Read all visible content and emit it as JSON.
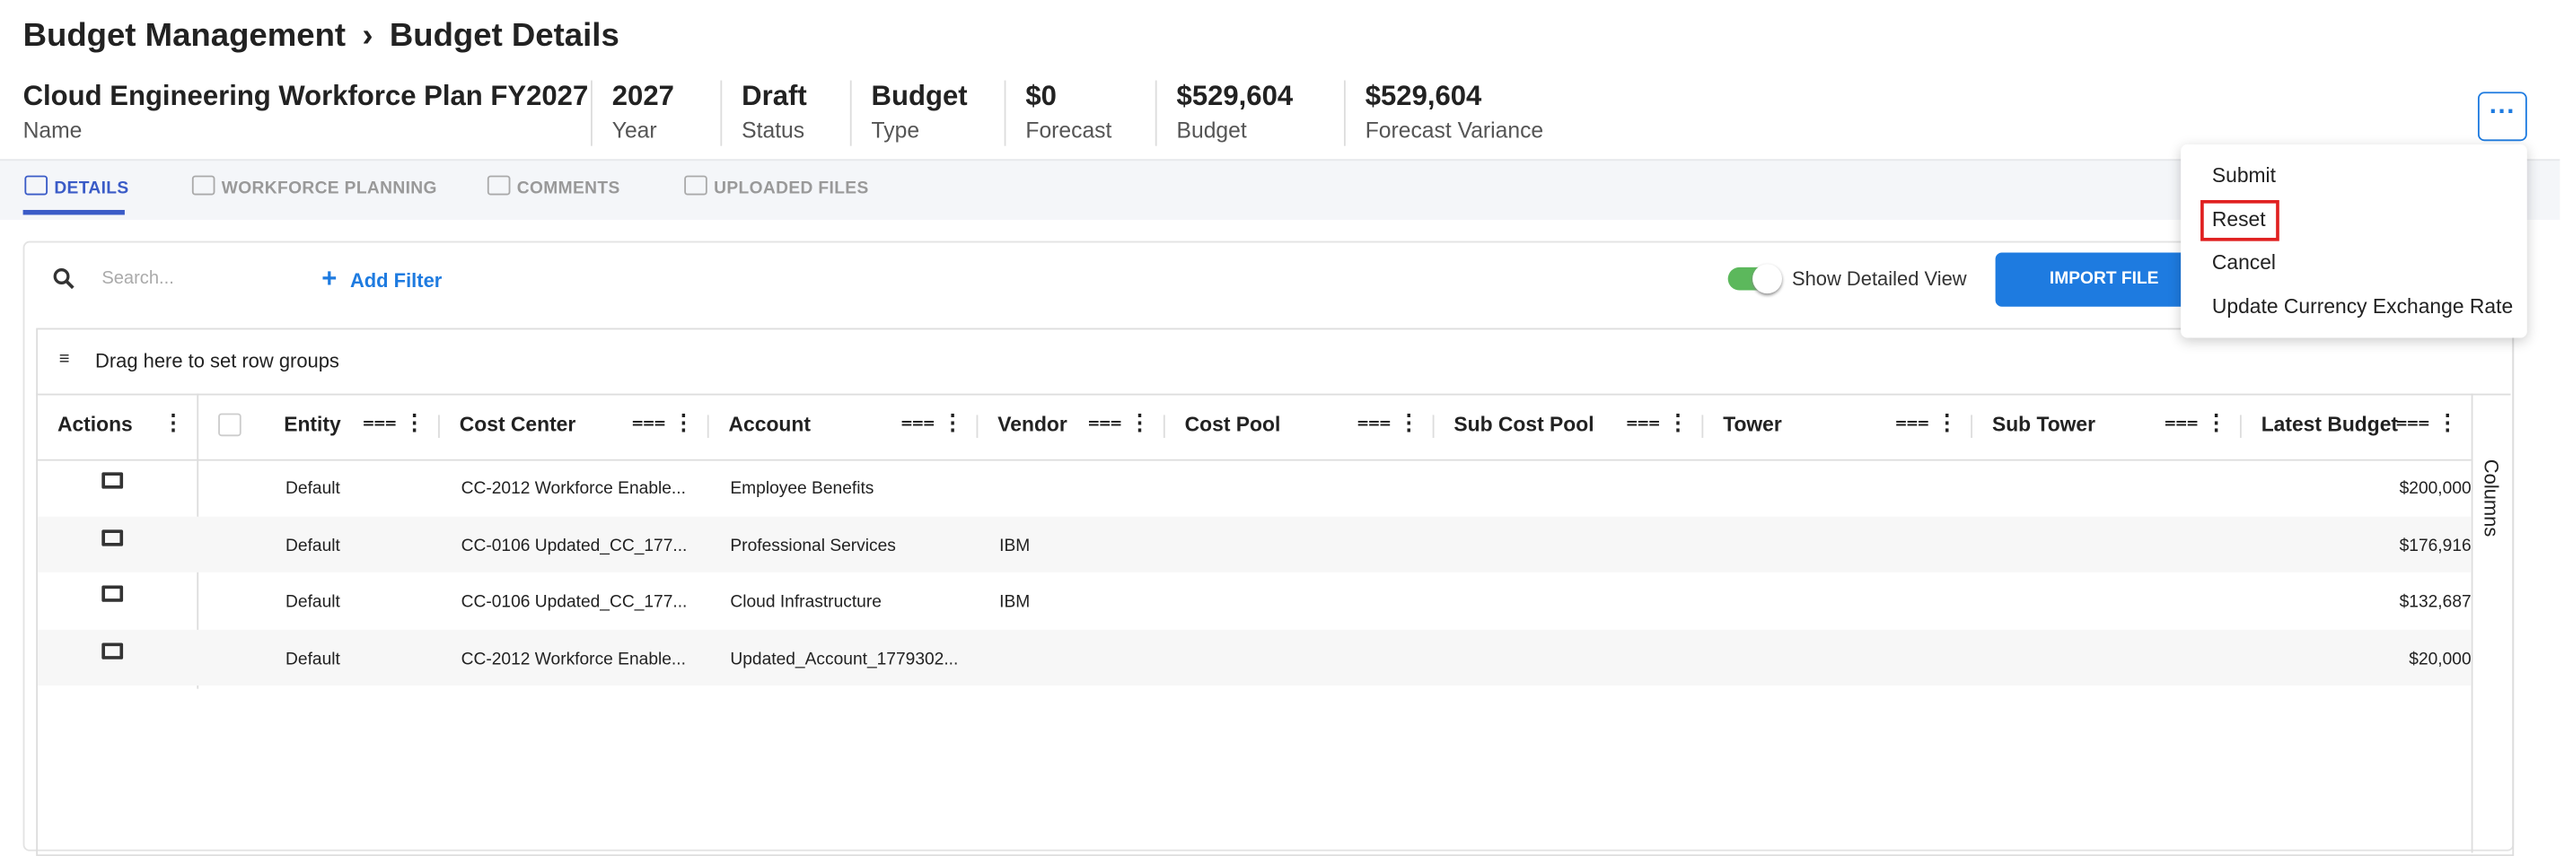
{
  "header": {
    "breadcrumb": [
      "Budget Management",
      "Budget Details"
    ]
  },
  "summary": [
    {
      "value": "Cloud Engineering Workforce Plan FY2027",
      "label": "Name"
    },
    {
      "value": "2027",
      "label": "Year"
    },
    {
      "value": "Draft",
      "label": "Status"
    },
    {
      "value": "Budget",
      "label": "Type"
    },
    {
      "value": "$0",
      "label": "Forecast"
    },
    {
      "value": "$529,604",
      "label": "Budget"
    },
    {
      "value": "$529,604",
      "label": "Forecast Variance"
    }
  ],
  "tabs": [
    "DETAILS",
    "WORKFORCE PLANNING",
    "COMMENTS",
    "UPLOADED FILES"
  ],
  "toolbar": {
    "search_placeholder": "Search...",
    "add_filter": "Add Filter",
    "toggle_label": "Show Detailed View",
    "import_button": "IMPORT FILE"
  },
  "table": {
    "row_group_hint": "Drag here to set row groups",
    "side_panel": "Columns",
    "columns": [
      "Actions",
      "Entity",
      "Cost Center",
      "Account",
      "Vendor",
      "Cost Pool",
      "Sub Cost Pool",
      "Tower",
      "Sub Tower",
      "Latest Budget"
    ],
    "rows": [
      {
        "entity": "Default",
        "cost_center": "CC-2012 Workforce Enable...",
        "account": "Employee Benefits",
        "latest_budget": "$200,000"
      },
      {
        "entity": "Default",
        "cost_center": "CC-0106 Updated_CC_177...",
        "account": "Professional Services",
        "vendor": "IBM",
        "latest_budget": "$176,916"
      },
      {
        "entity": "Default",
        "cost_center": "CC-0106 Updated_CC_177...",
        "account": "Cloud Infrastructure",
        "vendor": "IBM",
        "latest_budget": "$132,687"
      },
      {
        "entity": "Default",
        "cost_center": "CC-2012 Workforce Enable...",
        "account": "Updated_Account_1779302...",
        "latest_budget": "$20,000"
      }
    ]
  },
  "menu": [
    "Submit",
    "Reset",
    "Cancel",
    "Update Currency Exchange Rate"
  ]
}
